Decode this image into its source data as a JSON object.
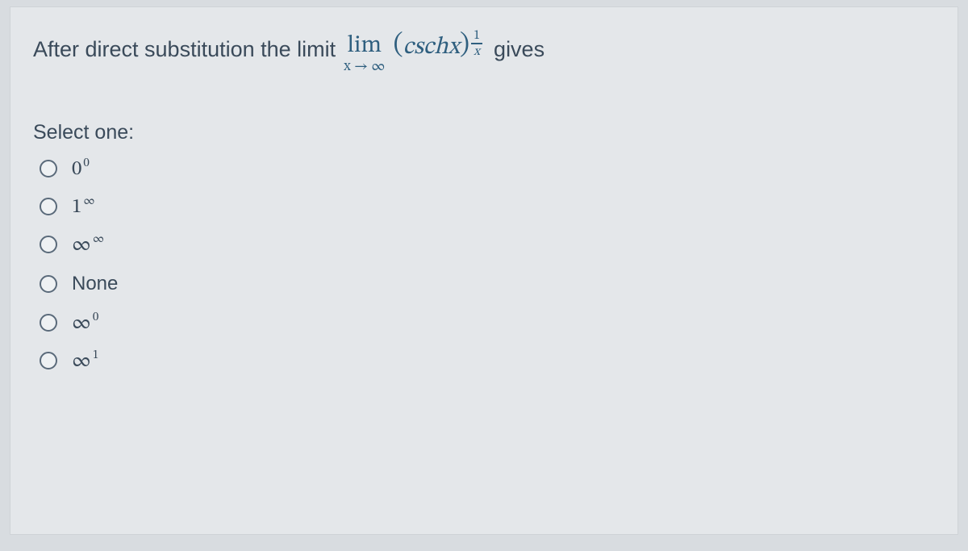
{
  "question": {
    "prefix": "After direct substitution the limit",
    "lim_word": "lim",
    "lim_sub": "x → ∞",
    "lparen": "(",
    "fn": "cschx",
    "rparen": ")",
    "exp_num": "1",
    "exp_den": "x",
    "suffix": "gives"
  },
  "select_label": "Select one:",
  "options": [
    {
      "base": "0",
      "sup": "0",
      "text": null
    },
    {
      "base": "1",
      "sup": "∞",
      "text": null
    },
    {
      "base": "∞",
      "sup": "∞",
      "text": null
    },
    {
      "base": null,
      "sup": null,
      "text": "None"
    },
    {
      "base": "∞",
      "sup": "0",
      "text": null
    },
    {
      "base": "∞",
      "sup": "1",
      "text": null
    }
  ],
  "styling": {
    "card_bg": "#e4e7ea",
    "body_bg": "#d8dce0",
    "text_color": "#3a4a5a",
    "math_color": "#2f5f7f",
    "radio_border": "#5a6a7a",
    "question_fontsize": 27,
    "option_fontsize": 25
  }
}
